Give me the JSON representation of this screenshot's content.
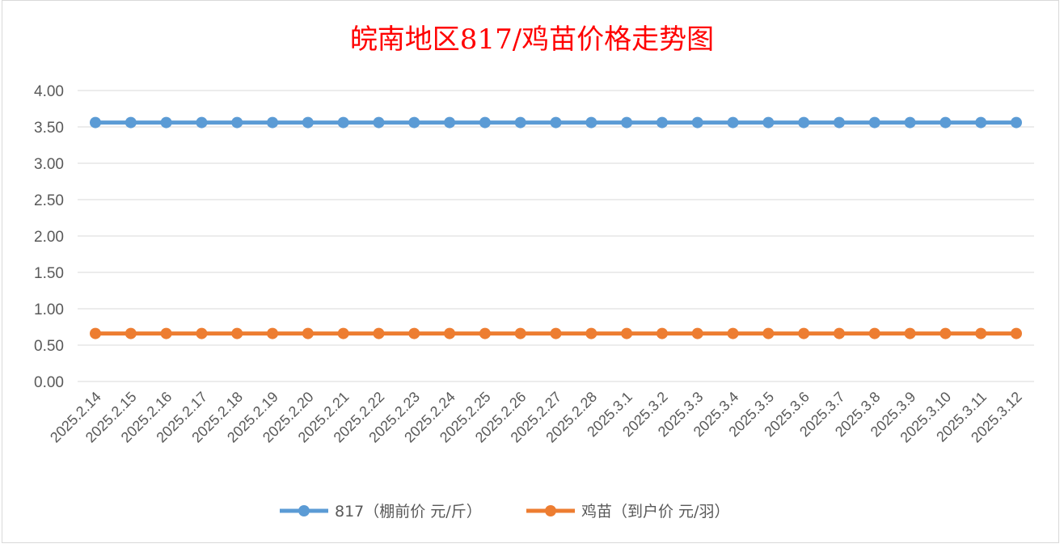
{
  "chart_data": {
    "type": "line",
    "title": "皖南地区817/鸡苗价格走势图",
    "categories": [
      "2025.2.14",
      "2025.2.15",
      "2025.2.16",
      "2025.2.17",
      "2025.2.18",
      "2025.2.19",
      "2025.2.20",
      "2025.2.21",
      "2025.2.22",
      "2025.2.23",
      "2025.2.24",
      "2025.2.25",
      "2025.2.26",
      "2025.2.27",
      "2025.2.28",
      "2025.3.1",
      "2025.3.2",
      "2025.3.3",
      "2025.3.4",
      "2025.3.5",
      "2025.3.6",
      "2025.3.7",
      "2025.3.8",
      "2025.3.9",
      "2025.3.10",
      "2025.3.11",
      "2025.3.12"
    ],
    "series": [
      {
        "name": "817（棚前价 元/斤）",
        "color": "#5b9bd5",
        "values": [
          3.56,
          3.56,
          3.56,
          3.56,
          3.56,
          3.56,
          3.56,
          3.56,
          3.56,
          3.56,
          3.56,
          3.56,
          3.56,
          3.56,
          3.56,
          3.56,
          3.56,
          3.56,
          3.56,
          3.56,
          3.56,
          3.56,
          3.56,
          3.56,
          3.56,
          3.56,
          3.56
        ]
      },
      {
        "name": "鸡苗（到户价 元/羽）",
        "color": "#ed7d31",
        "values": [
          0.66,
          0.66,
          0.66,
          0.66,
          0.66,
          0.66,
          0.66,
          0.66,
          0.66,
          0.66,
          0.66,
          0.66,
          0.66,
          0.66,
          0.66,
          0.66,
          0.66,
          0.66,
          0.66,
          0.66,
          0.66,
          0.66,
          0.66,
          0.66,
          0.66,
          0.66,
          0.66
        ]
      }
    ],
    "ylim": [
      0,
      4
    ],
    "yticks": [
      "0.00",
      "0.50",
      "1.00",
      "1.50",
      "2.00",
      "2.50",
      "3.00",
      "3.50",
      "4.00"
    ],
    "grid": true,
    "legend_position": "bottom"
  }
}
